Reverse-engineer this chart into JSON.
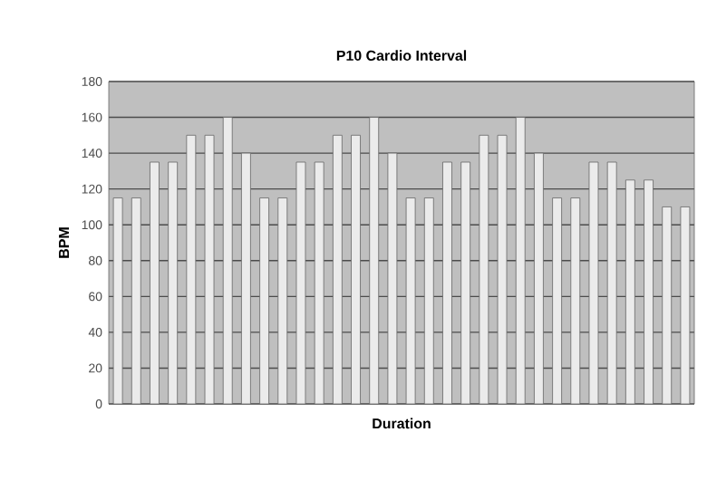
{
  "chart_data": {
    "type": "bar",
    "title": "P10 Cardio Interval",
    "xlabel": "Duration",
    "ylabel": "BPM",
    "categories": [
      null,
      null,
      null,
      null,
      null,
      null,
      null,
      null,
      null,
      null,
      null,
      null,
      null,
      null,
      null,
      null,
      null,
      null,
      null,
      null,
      null,
      null,
      null,
      null,
      null,
      null,
      null,
      null,
      null,
      null,
      null,
      null
    ],
    "values": [
      115,
      115,
      135,
      135,
      150,
      150,
      160,
      140,
      115,
      115,
      135,
      135,
      150,
      150,
      160,
      140,
      115,
      115,
      135,
      135,
      150,
      150,
      160,
      140,
      115,
      115,
      135,
      135,
      125,
      125,
      110,
      110
    ],
    "color": "#ebebeb",
    "ylim": [
      0,
      180
    ],
    "yticks": [
      0,
      20,
      40,
      60,
      80,
      100,
      120,
      140,
      160,
      180
    ],
    "grid": "y"
  }
}
